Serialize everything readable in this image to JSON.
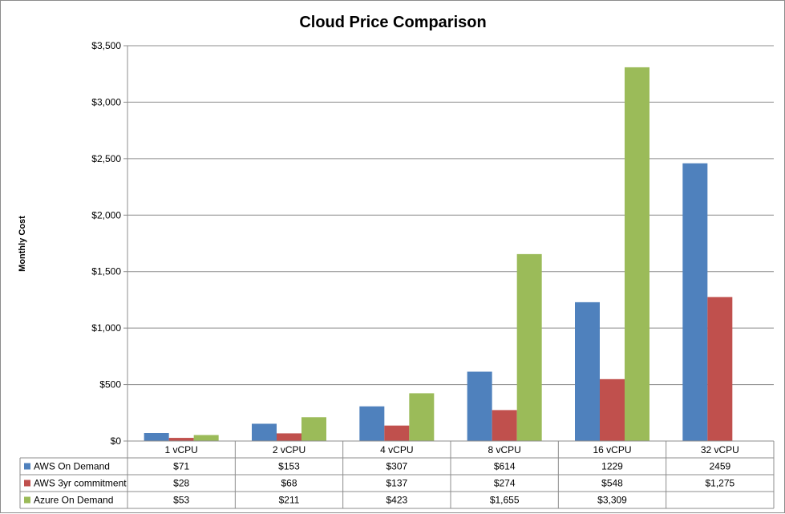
{
  "chart_data": {
    "type": "bar",
    "title": "Cloud Price Comparison",
    "ylabel": "Monthly Cost",
    "xlabel": "",
    "ylim": [
      0,
      3500
    ],
    "y_tick_step": 500,
    "y_tick_labels": [
      "$0",
      "$500",
      "$1,000",
      "$1,500",
      "$2,000",
      "$2,500",
      "$3,000",
      "$3,500"
    ],
    "grid": "horizontal",
    "legend": "data-table",
    "categories": [
      "1 vCPU",
      "2 vCPU",
      "4 vCPU",
      "8 vCPU",
      "16 vCPU",
      "32 vCPU"
    ],
    "series": [
      {
        "name": "AWS On Demand",
        "color": "#4f81bd",
        "values": [
          71,
          153,
          307,
          614,
          1229,
          2459
        ],
        "labels": [
          "$71",
          "$153",
          "$307",
          "$614",
          "1229",
          "2459"
        ]
      },
      {
        "name": "AWS 3yr commitment",
        "color": "#c0504d",
        "values": [
          28,
          68,
          137,
          274,
          548,
          1275
        ],
        "labels": [
          "$28",
          "$68",
          "$137",
          "$274",
          "$548",
          "$1,275"
        ]
      },
      {
        "name": "Azure On Demand",
        "color": "#9bbb59",
        "values": [
          53,
          211,
          423,
          1655,
          3309,
          null
        ],
        "labels": [
          "$53",
          "$211",
          "$423",
          "$1,655",
          "$3,309",
          ""
        ]
      }
    ]
  }
}
